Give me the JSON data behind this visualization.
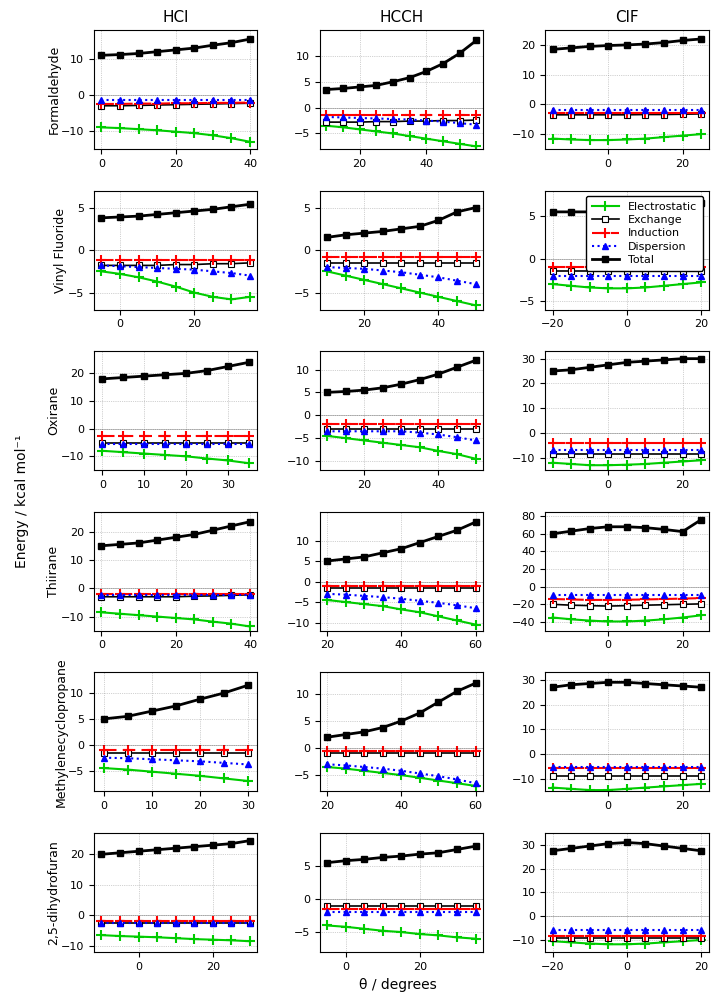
{
  "col_titles": [
    "HCl",
    "HCCH",
    "ClF"
  ],
  "row_titles": [
    "Formaldehyde",
    "Vinyl Fluoride",
    "Oxirane",
    "Thiirane",
    "Methylenecyclopropane",
    "2,5-dihydrofuran"
  ],
  "xlabel": "θ / degrees",
  "ylabel": "Energy / kcal mol⁻¹",
  "legend_labels": [
    "Electrostatic",
    "Exchange",
    "Induction",
    "Dispersion",
    "Total"
  ],
  "line_colors": [
    "#00cc00",
    "#000000",
    "#ff0000",
    "#0000ff",
    "#000000"
  ],
  "line_styles": [
    "-",
    "-",
    "--",
    ":",
    "-"
  ],
  "line_markers": [
    "+",
    "s",
    "+",
    "^",
    "s"
  ],
  "line_widths": [
    1.5,
    1.5,
    1.5,
    1.5,
    2.0
  ],
  "marker_sizes": [
    7,
    5,
    7,
    5,
    5
  ],
  "plots": {
    "r0c0": {
      "xdata": [
        0,
        5,
        10,
        15,
        20,
        25,
        30,
        35,
        40
      ],
      "elec": [
        -9.0,
        -9.2,
        -9.5,
        -9.8,
        -10.2,
        -10.6,
        -11.2,
        -12.0,
        -13.0
      ],
      "exch": [
        -3.0,
        -3.0,
        -2.9,
        -2.8,
        -2.7,
        -2.6,
        -2.5,
        -2.4,
        -2.3
      ],
      "ind": [
        -2.5,
        -2.5,
        -2.4,
        -2.4,
        -2.3,
        -2.3,
        -2.2,
        -2.2,
        -2.1
      ],
      "disp": [
        -1.5,
        -1.5,
        -1.5,
        -1.5,
        -1.5,
        -1.5,
        -1.5,
        -1.5,
        -1.5
      ],
      "total": [
        11.0,
        11.2,
        11.5,
        12.0,
        12.5,
        13.0,
        13.8,
        14.5,
        15.5
      ],
      "ylim": [
        -15,
        18
      ],
      "xlim": [
        -2,
        42
      ],
      "yticks": [
        -10,
        0,
        10
      ]
    },
    "r0c1": {
      "xdata": [
        10,
        15,
        20,
        25,
        30,
        35,
        40,
        45,
        50,
        55
      ],
      "elec": [
        -3.5,
        -3.8,
        -4.2,
        -4.6,
        -5.0,
        -5.5,
        -6.0,
        -6.5,
        -7.0,
        -7.5
      ],
      "exch": [
        -2.8,
        -2.8,
        -2.8,
        -2.7,
        -2.7,
        -2.6,
        -2.6,
        -2.5,
        -2.5,
        -2.4
      ],
      "ind": [
        -1.5,
        -1.5,
        -1.5,
        -1.5,
        -1.5,
        -1.5,
        -1.5,
        -1.5,
        -1.5,
        -1.5
      ],
      "disp": [
        -1.8,
        -1.9,
        -2.0,
        -2.1,
        -2.2,
        -2.3,
        -2.5,
        -2.7,
        -3.0,
        -3.3
      ],
      "total": [
        3.5,
        3.7,
        4.0,
        4.3,
        5.0,
        5.8,
        7.0,
        8.5,
        10.5,
        13.0
      ],
      "ylim": [
        -8,
        15
      ],
      "xlim": [
        8,
        57
      ],
      "yticks": [
        -5,
        0,
        5,
        10
      ]
    },
    "r0c2": {
      "xdata": [
        -15,
        -10,
        -5,
        0,
        5,
        10,
        15,
        20,
        25
      ],
      "elec": [
        -11.5,
        -11.8,
        -12.0,
        -12.0,
        -11.8,
        -11.5,
        -11.0,
        -10.5,
        -10.0
      ],
      "exch": [
        -3.5,
        -3.5,
        -3.5,
        -3.5,
        -3.5,
        -3.4,
        -3.4,
        -3.3,
        -3.2
      ],
      "ind": [
        -3.0,
        -3.0,
        -3.0,
        -3.0,
        -3.0,
        -3.0,
        -3.0,
        -3.0,
        -3.0
      ],
      "disp": [
        -2.0,
        -2.0,
        -2.0,
        -2.0,
        -2.0,
        -2.0,
        -2.0,
        -2.0,
        -2.0
      ],
      "total": [
        18.5,
        19.0,
        19.5,
        19.8,
        20.0,
        20.3,
        20.8,
        21.5,
        22.0
      ],
      "ylim": [
        -15,
        25
      ],
      "xlim": [
        -17,
        27
      ],
      "yticks": [
        -10,
        0,
        10,
        20
      ]
    },
    "r1c0": {
      "xdata": [
        -5,
        0,
        5,
        10,
        15,
        20,
        25,
        30,
        35
      ],
      "elec": [
        -2.5,
        -2.8,
        -3.2,
        -3.7,
        -4.3,
        -5.0,
        -5.5,
        -5.8,
        -5.5
      ],
      "exch": [
        -1.8,
        -1.8,
        -1.8,
        -1.8,
        -1.7,
        -1.7,
        -1.6,
        -1.6,
        -1.5
      ],
      "ind": [
        -1.2,
        -1.2,
        -1.2,
        -1.2,
        -1.2,
        -1.2,
        -1.2,
        -1.2,
        -1.2
      ],
      "disp": [
        -1.8,
        -1.9,
        -2.0,
        -2.1,
        -2.2,
        -2.3,
        -2.5,
        -2.7,
        -3.0
      ],
      "total": [
        3.8,
        3.9,
        4.0,
        4.2,
        4.4,
        4.6,
        4.8,
        5.1,
        5.4
      ],
      "ylim": [
        -7,
        7
      ],
      "xlim": [
        -7,
        37
      ],
      "yticks": [
        -5,
        0,
        5
      ]
    },
    "r1c1": {
      "xdata": [
        10,
        15,
        20,
        25,
        30,
        35,
        40,
        45,
        50
      ],
      "elec": [
        -2.5,
        -3.0,
        -3.5,
        -4.0,
        -4.5,
        -5.0,
        -5.5,
        -6.0,
        -6.5
      ],
      "exch": [
        -1.5,
        -1.5,
        -1.5,
        -1.5,
        -1.5,
        -1.5,
        -1.5,
        -1.5,
        -1.5
      ],
      "ind": [
        -0.8,
        -0.8,
        -0.8,
        -0.8,
        -0.8,
        -0.8,
        -0.8,
        -0.8,
        -0.8
      ],
      "disp": [
        -2.0,
        -2.1,
        -2.2,
        -2.4,
        -2.6,
        -2.9,
        -3.2,
        -3.6,
        -4.0
      ],
      "total": [
        1.5,
        1.8,
        2.0,
        2.2,
        2.5,
        2.8,
        3.5,
        4.5,
        5.0
      ],
      "ylim": [
        -7,
        7
      ],
      "xlim": [
        8,
        52
      ],
      "yticks": [
        -5,
        0,
        5
      ]
    },
    "r1c2": {
      "xdata": [
        -20,
        -15,
        -10,
        -5,
        0,
        5,
        10,
        15,
        20
      ],
      "elec": [
        -3.0,
        -3.2,
        -3.4,
        -3.5,
        -3.5,
        -3.4,
        -3.2,
        -3.0,
        -2.8
      ],
      "exch": [
        -1.5,
        -1.5,
        -1.5,
        -1.5,
        -1.5,
        -1.5,
        -1.5,
        -1.5,
        -1.5
      ],
      "ind": [
        -1.0,
        -1.0,
        -1.0,
        -1.0,
        -1.0,
        -1.0,
        -1.0,
        -1.0,
        -1.0
      ],
      "disp": [
        -2.0,
        -2.0,
        -2.0,
        -2.0,
        -2.0,
        -2.0,
        -2.0,
        -2.0,
        -2.0
      ],
      "total": [
        5.5,
        5.5,
        5.5,
        5.5,
        5.5,
        5.5,
        5.6,
        5.8,
        6.5
      ],
      "ylim": [
        -6,
        8
      ],
      "xlim": [
        -22,
        22
      ],
      "yticks": [
        -5,
        0,
        5
      ]
    },
    "r2c0": {
      "xdata": [
        0,
        5,
        10,
        15,
        20,
        25,
        30,
        35
      ],
      "elec": [
        -8.0,
        -8.5,
        -9.0,
        -9.5,
        -10.0,
        -10.8,
        -11.5,
        -12.5
      ],
      "exch": [
        -5.0,
        -5.0,
        -5.0,
        -5.0,
        -5.0,
        -5.0,
        -5.0,
        -5.0
      ],
      "ind": [
        -2.5,
        -2.5,
        -2.5,
        -2.5,
        -2.5,
        -2.5,
        -2.5,
        -2.5
      ],
      "disp": [
        -5.5,
        -5.5,
        -5.5,
        -5.5,
        -5.5,
        -5.5,
        -5.5,
        -5.5
      ],
      "total": [
        18.0,
        18.5,
        19.0,
        19.5,
        20.0,
        21.0,
        22.5,
        24.0
      ],
      "ylim": [
        -15,
        28
      ],
      "xlim": [
        -2,
        37
      ],
      "yticks": [
        -10,
        0,
        10,
        20
      ]
    },
    "r2c1": {
      "xdata": [
        10,
        15,
        20,
        25,
        30,
        35,
        40,
        45,
        50
      ],
      "elec": [
        -4.5,
        -5.0,
        -5.5,
        -6.0,
        -6.5,
        -7.0,
        -7.8,
        -8.5,
        -9.5
      ],
      "exch": [
        -3.0,
        -3.0,
        -3.0,
        -3.0,
        -3.0,
        -3.0,
        -3.0,
        -3.0,
        -3.0
      ],
      "ind": [
        -2.0,
        -2.0,
        -2.0,
        -2.0,
        -2.0,
        -2.0,
        -2.0,
        -2.0,
        -2.0
      ],
      "disp": [
        -3.5,
        -3.5,
        -3.5,
        -3.5,
        -3.5,
        -3.8,
        -4.2,
        -4.8,
        -5.5
      ],
      "total": [
        5.0,
        5.2,
        5.5,
        6.0,
        6.8,
        7.8,
        9.0,
        10.5,
        12.0
      ],
      "ylim": [
        -12,
        14
      ],
      "xlim": [
        8,
        52
      ],
      "yticks": [
        -10,
        -5,
        0,
        5,
        10
      ]
    },
    "r2c2": {
      "xdata": [
        -15,
        -10,
        -5,
        0,
        5,
        10,
        15,
        20,
        25
      ],
      "elec": [
        -12.0,
        -12.5,
        -13.0,
        -13.0,
        -12.8,
        -12.5,
        -12.0,
        -11.5,
        -11.0
      ],
      "exch": [
        -8.5,
        -8.5,
        -8.5,
        -8.5,
        -8.5,
        -8.5,
        -8.5,
        -8.5,
        -8.5
      ],
      "ind": [
        -4.0,
        -4.0,
        -4.0,
        -4.0,
        -4.0,
        -4.0,
        -4.0,
        -4.0,
        -4.0
      ],
      "disp": [
        -7.0,
        -7.0,
        -7.0,
        -7.0,
        -7.0,
        -7.0,
        -7.0,
        -7.0,
        -7.0
      ],
      "total": [
        25.0,
        25.5,
        26.5,
        27.5,
        28.5,
        29.0,
        29.5,
        30.0,
        30.0
      ],
      "ylim": [
        -15,
        33
      ],
      "xlim": [
        -17,
        27
      ],
      "yticks": [
        -10,
        0,
        10,
        20,
        30
      ]
    },
    "r3c0": {
      "xdata": [
        0,
        5,
        10,
        15,
        20,
        25,
        30,
        35,
        40
      ],
      "elec": [
        -8.5,
        -9.0,
        -9.5,
        -10.0,
        -10.5,
        -11.0,
        -11.8,
        -12.5,
        -13.5
      ],
      "exch": [
        -3.0,
        -3.0,
        -3.0,
        -3.0,
        -3.0,
        -2.8,
        -2.7,
        -2.5,
        -2.3
      ],
      "ind": [
        -2.0,
        -2.0,
        -2.0,
        -2.0,
        -2.0,
        -2.0,
        -2.0,
        -2.0,
        -2.0
      ],
      "disp": [
        -2.5,
        -2.5,
        -2.5,
        -2.5,
        -2.5,
        -2.5,
        -2.5,
        -2.5,
        -2.5
      ],
      "total": [
        15.0,
        15.5,
        16.0,
        17.0,
        18.0,
        19.0,
        20.5,
        22.0,
        23.5
      ],
      "ylim": [
        -15,
        27
      ],
      "xlim": [
        -2,
        42
      ],
      "yticks": [
        -10,
        0,
        10,
        20
      ]
    },
    "r3c1": {
      "xdata": [
        20,
        25,
        30,
        35,
        40,
        45,
        50,
        55,
        60
      ],
      "elec": [
        -4.5,
        -5.0,
        -5.5,
        -6.0,
        -6.8,
        -7.5,
        -8.5,
        -9.5,
        -10.5
      ],
      "exch": [
        -1.5,
        -1.5,
        -1.5,
        -1.5,
        -1.5,
        -1.5,
        -1.5,
        -1.5,
        -1.5
      ],
      "ind": [
        -1.0,
        -1.0,
        -1.0,
        -1.0,
        -1.0,
        -1.0,
        -1.0,
        -1.0,
        -1.0
      ],
      "disp": [
        -3.0,
        -3.2,
        -3.5,
        -3.8,
        -4.2,
        -4.7,
        -5.2,
        -5.8,
        -6.5
      ],
      "total": [
        5.0,
        5.5,
        6.0,
        7.0,
        8.0,
        9.5,
        11.0,
        12.5,
        14.5
      ],
      "ylim": [
        -12,
        17
      ],
      "xlim": [
        18,
        62
      ],
      "yticks": [
        -10,
        -5,
        0,
        5,
        10
      ]
    },
    "r3c2": {
      "xdata": [
        -15,
        -10,
        -5,
        0,
        5,
        10,
        15,
        20,
        25
      ],
      "elec": [
        -35.0,
        -37.0,
        -38.5,
        -39.5,
        -39.5,
        -38.5,
        -37.0,
        -35.0,
        -32.5
      ],
      "exch": [
        -20.0,
        -21.0,
        -21.5,
        -22.0,
        -21.5,
        -21.0,
        -20.5,
        -20.0,
        -19.5
      ],
      "ind": [
        -14.0,
        -14.5,
        -15.0,
        -15.0,
        -14.8,
        -14.5,
        -14.0,
        -13.5,
        -13.0
      ],
      "disp": [
        -10.0,
        -10.0,
        -10.0,
        -10.0,
        -10.0,
        -10.0,
        -10.0,
        -10.0,
        -10.0
      ],
      "total": [
        60.0,
        63.0,
        66.0,
        68.0,
        68.0,
        67.0,
        65.0,
        62.5,
        76.0
      ],
      "ylim": [
        -50,
        85
      ],
      "xlim": [
        -17,
        27
      ],
      "yticks": [
        -40,
        -20,
        0,
        20,
        40,
        60,
        80
      ]
    },
    "r4c0": {
      "xdata": [
        0,
        5,
        10,
        15,
        20,
        25,
        30
      ],
      "elec": [
        -4.5,
        -4.8,
        -5.2,
        -5.6,
        -6.0,
        -6.5,
        -7.0
      ],
      "exch": [
        -1.5,
        -1.5,
        -1.5,
        -1.5,
        -1.5,
        -1.5,
        -1.5
      ],
      "ind": [
        -1.0,
        -1.0,
        -1.0,
        -1.0,
        -1.0,
        -1.0,
        -1.0
      ],
      "disp": [
        -2.5,
        -2.6,
        -2.8,
        -3.0,
        -3.2,
        -3.5,
        -3.8
      ],
      "total": [
        5.0,
        5.5,
        6.5,
        7.5,
        8.8,
        10.0,
        11.5
      ],
      "ylim": [
        -9,
        14
      ],
      "xlim": [
        -2,
        32
      ],
      "yticks": [
        -5,
        0,
        5,
        10
      ]
    },
    "r4c1": {
      "xdata": [
        20,
        25,
        30,
        35,
        40,
        45,
        50,
        55,
        60
      ],
      "elec": [
        -3.5,
        -3.8,
        -4.2,
        -4.6,
        -5.0,
        -5.5,
        -6.0,
        -6.5,
        -7.0
      ],
      "exch": [
        -1.0,
        -1.0,
        -1.0,
        -1.0,
        -1.0,
        -1.0,
        -1.0,
        -1.0,
        -1.0
      ],
      "ind": [
        -0.5,
        -0.5,
        -0.5,
        -0.5,
        -0.5,
        -0.5,
        -0.5,
        -0.5,
        -0.5
      ],
      "disp": [
        -3.0,
        -3.2,
        -3.5,
        -3.8,
        -4.2,
        -4.7,
        -5.2,
        -5.8,
        -6.5
      ],
      "total": [
        2.0,
        2.5,
        3.0,
        3.8,
        5.0,
        6.5,
        8.5,
        10.5,
        12.0
      ],
      "ylim": [
        -8,
        14
      ],
      "xlim": [
        18,
        62
      ],
      "yticks": [
        -5,
        0,
        5,
        10
      ]
    },
    "r4c2": {
      "xdata": [
        -15,
        -10,
        -5,
        0,
        5,
        10,
        15,
        20,
        25
      ],
      "elec": [
        -13.5,
        -14.0,
        -14.5,
        -14.5,
        -14.0,
        -13.5,
        -13.0,
        -12.5,
        -12.0
      ],
      "exch": [
        -9.0,
        -9.0,
        -9.0,
        -9.0,
        -9.0,
        -9.0,
        -9.0,
        -9.0,
        -9.0
      ],
      "ind": [
        -5.5,
        -5.5,
        -5.5,
        -5.5,
        -5.5,
        -5.5,
        -5.5,
        -5.5,
        -5.5
      ],
      "disp": [
        -5.0,
        -5.0,
        -5.0,
        -5.0,
        -5.0,
        -5.0,
        -5.0,
        -5.0,
        -5.0
      ],
      "total": [
        27.0,
        28.0,
        28.5,
        29.0,
        29.0,
        28.5,
        28.0,
        27.5,
        27.0
      ],
      "ylim": [
        -15,
        33
      ],
      "xlim": [
        -17,
        27
      ],
      "yticks": [
        -10,
        0,
        10,
        20,
        30
      ]
    },
    "r5c0": {
      "xdata": [
        -10,
        -5,
        0,
        5,
        10,
        15,
        20,
        25,
        30
      ],
      "elec": [
        -6.5,
        -6.8,
        -7.0,
        -7.2,
        -7.5,
        -7.8,
        -8.0,
        -8.2,
        -8.5
      ],
      "exch": [
        -2.5,
        -2.5,
        -2.5,
        -2.5,
        -2.5,
        -2.5,
        -2.5,
        -2.5,
        -2.5
      ],
      "ind": [
        -2.0,
        -2.0,
        -2.0,
        -2.0,
        -2.0,
        -2.0,
        -2.0,
        -2.0,
        -2.0
      ],
      "disp": [
        -2.5,
        -2.5,
        -2.5,
        -2.5,
        -2.5,
        -2.5,
        -2.5,
        -2.5,
        -2.5
      ],
      "total": [
        20.0,
        20.5,
        21.0,
        21.5,
        22.0,
        22.5,
        23.0,
        23.5,
        24.5
      ],
      "ylim": [
        -12,
        27
      ],
      "xlim": [
        -12,
        32
      ],
      "yticks": [
        -10,
        0,
        10,
        20
      ]
    },
    "r5c1": {
      "xdata": [
        -5,
        0,
        5,
        10,
        15,
        20,
        25,
        30,
        35
      ],
      "elec": [
        -4.0,
        -4.2,
        -4.5,
        -4.8,
        -5.0,
        -5.3,
        -5.5,
        -5.8,
        -6.0
      ],
      "exch": [
        -1.0,
        -1.0,
        -1.0,
        -1.0,
        -1.0,
        -1.0,
        -1.0,
        -1.0,
        -1.0
      ],
      "ind": [
        -1.5,
        -1.5,
        -1.5,
        -1.5,
        -1.5,
        -1.5,
        -1.5,
        -1.5,
        -1.5
      ],
      "disp": [
        -2.0,
        -2.0,
        -2.0,
        -2.0,
        -2.0,
        -2.0,
        -2.0,
        -2.0,
        -2.0
      ],
      "total": [
        5.5,
        5.8,
        6.0,
        6.3,
        6.5,
        6.8,
        7.0,
        7.5,
        8.0
      ],
      "ylim": [
        -8,
        10
      ],
      "xlim": [
        -7,
        37
      ],
      "yticks": [
        -5,
        0,
        5
      ]
    },
    "r5c2": {
      "xdata": [
        -20,
        -15,
        -10,
        -5,
        0,
        5,
        10,
        15,
        20
      ],
      "elec": [
        -10.5,
        -11.0,
        -11.5,
        -11.8,
        -11.8,
        -11.5,
        -11.0,
        -10.5,
        -10.0
      ],
      "exch": [
        -9.0,
        -9.0,
        -9.0,
        -9.0,
        -9.0,
        -9.0,
        -9.0,
        -9.0,
        -9.0
      ],
      "ind": [
        -8.5,
        -8.5,
        -8.5,
        -8.5,
        -8.5,
        -8.5,
        -8.5,
        -8.5,
        -8.5
      ],
      "disp": [
        -6.0,
        -6.0,
        -6.0,
        -6.0,
        -6.0,
        -6.0,
        -6.0,
        -6.0,
        -6.0
      ],
      "total": [
        27.5,
        28.5,
        29.5,
        30.5,
        31.0,
        30.5,
        29.5,
        28.5,
        27.5
      ],
      "ylim": [
        -15,
        35
      ],
      "xlim": [
        -22,
        22
      ],
      "yticks": [
        -10,
        0,
        10,
        20,
        30
      ]
    }
  }
}
